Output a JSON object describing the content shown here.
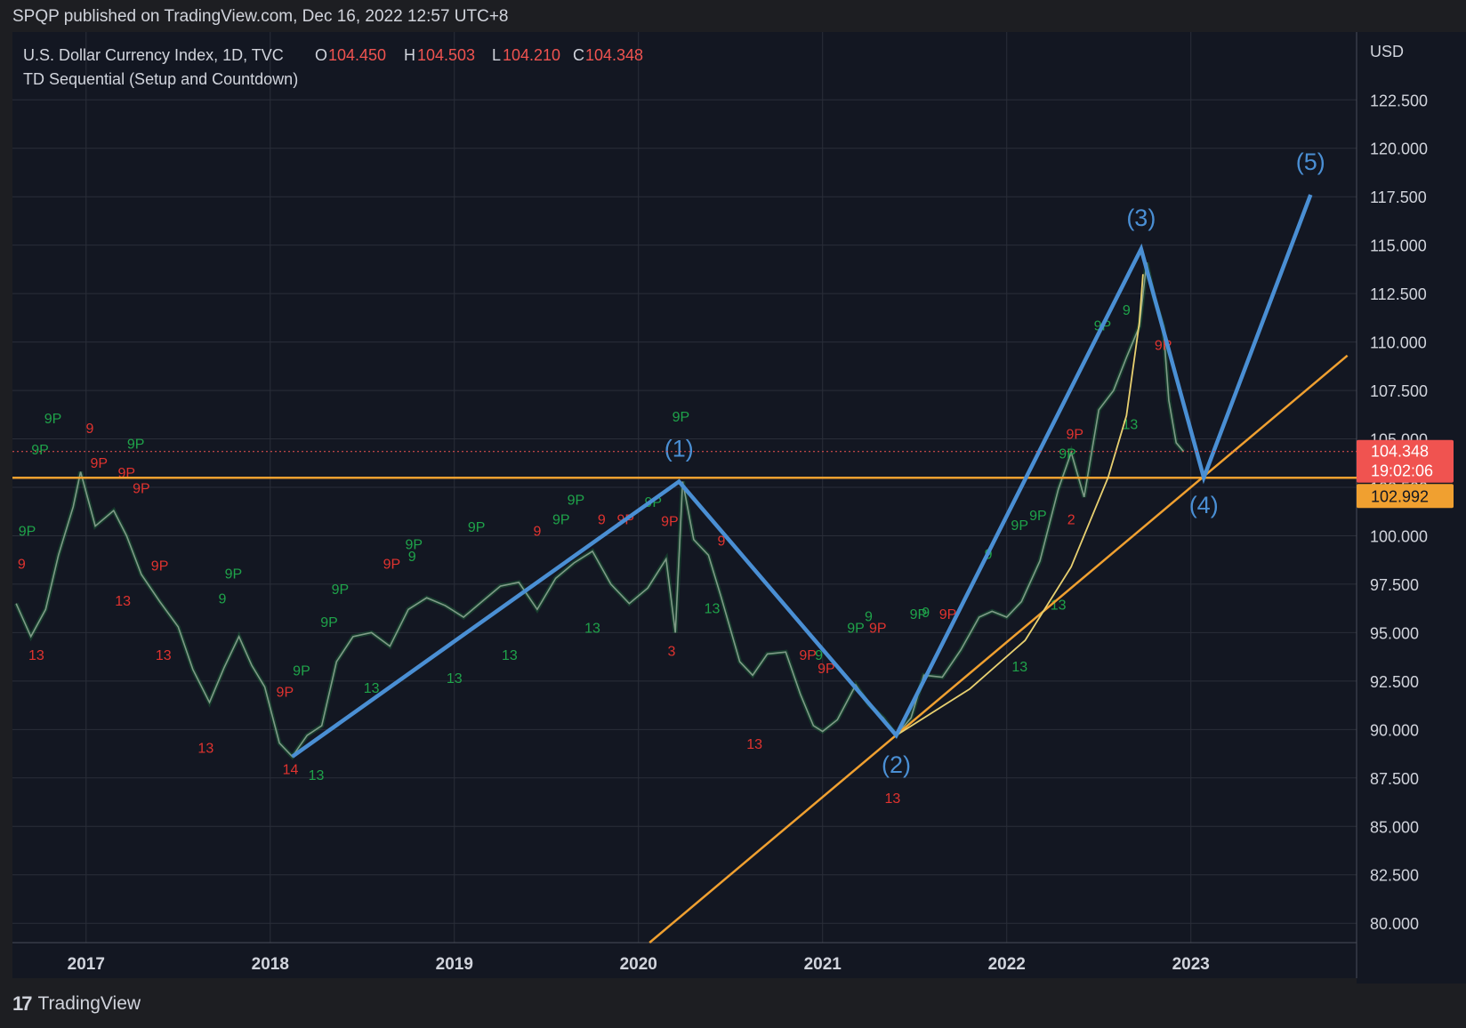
{
  "header": {
    "published": "SPQP published on TradingView.com, Dec 16, 2022 12:57 UTC+8"
  },
  "legend": {
    "symbol": "U.S. Dollar Currency Index, 1D, TVC",
    "o_label": "O",
    "o_value": "104.450",
    "h_label": "H",
    "h_value": "104.503",
    "l_label": "L",
    "l_value": "104.210",
    "c_label": "C",
    "c_value": "104.348",
    "indicator": "TD Sequential (Setup and Countdown)"
  },
  "footer": {
    "logo_mark": "17",
    "logo_text": "TradingView"
  },
  "colors": {
    "background": "#131722",
    "grid": "#2a2e39",
    "wave": "#4a8fd4",
    "trend": "#f0a030",
    "bull": "#1fa34a",
    "bear": "#e0332f",
    "price_tag": "#f05350"
  },
  "chart_data": {
    "type": "line",
    "currency": "USD",
    "y_ticks": [
      80,
      82.5,
      85,
      87.5,
      90,
      92.5,
      95,
      97.5,
      100,
      102.5,
      105,
      107.5,
      110,
      112.5,
      115,
      117.5,
      120,
      122.5
    ],
    "y_tick_labels": [
      "80.000",
      "82.500",
      "85.000",
      "87.500",
      "90.000",
      "92.500",
      "95.000",
      "97.500",
      "100.000",
      "102.500",
      "105.000",
      "107.500",
      "110.000",
      "112.500",
      "115.000",
      "117.500",
      "120.000",
      "122.500"
    ],
    "ylim": [
      79.0,
      126.0
    ],
    "xlim": [
      2016.6,
      2023.9
    ],
    "x_ticks": [
      2017,
      2018,
      2019,
      2020,
      2021,
      2022,
      2023
    ],
    "x_tick_labels": [
      "2017",
      "2018",
      "2019",
      "2020",
      "2021",
      "2022",
      "2023"
    ],
    "price_series": [
      [
        2016.62,
        96.5
      ],
      [
        2016.7,
        94.8
      ],
      [
        2016.78,
        96.2
      ],
      [
        2016.85,
        99.0
      ],
      [
        2016.93,
        101.5
      ],
      [
        2016.97,
        103.3
      ],
      [
        2017.05,
        100.5
      ],
      [
        2017.15,
        101.3
      ],
      [
        2017.22,
        100.0
      ],
      [
        2017.3,
        98.0
      ],
      [
        2017.4,
        96.6
      ],
      [
        2017.5,
        95.3
      ],
      [
        2017.58,
        93.1
      ],
      [
        2017.67,
        91.4
      ],
      [
        2017.75,
        93.2
      ],
      [
        2017.83,
        94.8
      ],
      [
        2017.9,
        93.3
      ],
      [
        2017.97,
        92.2
      ],
      [
        2018.05,
        89.3
      ],
      [
        2018.12,
        88.6
      ],
      [
        2018.2,
        89.7
      ],
      [
        2018.28,
        90.2
      ],
      [
        2018.36,
        93.5
      ],
      [
        2018.45,
        94.8
      ],
      [
        2018.55,
        95.0
      ],
      [
        2018.65,
        94.3
      ],
      [
        2018.75,
        96.2
      ],
      [
        2018.85,
        96.8
      ],
      [
        2018.95,
        96.4
      ],
      [
        2019.05,
        95.8
      ],
      [
        2019.15,
        96.6
      ],
      [
        2019.25,
        97.4
      ],
      [
        2019.35,
        97.6
      ],
      [
        2019.45,
        96.2
      ],
      [
        2019.55,
        97.8
      ],
      [
        2019.65,
        98.6
      ],
      [
        2019.75,
        99.2
      ],
      [
        2019.85,
        97.5
      ],
      [
        2019.95,
        96.5
      ],
      [
        2020.05,
        97.3
      ],
      [
        2020.15,
        98.8
      ],
      [
        2020.2,
        95.0
      ],
      [
        2020.24,
        102.8
      ],
      [
        2020.3,
        99.8
      ],
      [
        2020.38,
        99.0
      ],
      [
        2020.45,
        96.8
      ],
      [
        2020.55,
        93.5
      ],
      [
        2020.62,
        92.8
      ],
      [
        2020.7,
        93.9
      ],
      [
        2020.8,
        94.0
      ],
      [
        2020.88,
        91.8
      ],
      [
        2020.95,
        90.2
      ],
      [
        2021.0,
        89.9
      ],
      [
        2021.08,
        90.5
      ],
      [
        2021.18,
        92.3
      ],
      [
        2021.25,
        91.3
      ],
      [
        2021.33,
        90.6
      ],
      [
        2021.4,
        89.7
      ],
      [
        2021.48,
        90.6
      ],
      [
        2021.55,
        92.8
      ],
      [
        2021.65,
        92.7
      ],
      [
        2021.75,
        94.1
      ],
      [
        2021.85,
        95.8
      ],
      [
        2021.92,
        96.1
      ],
      [
        2022.0,
        95.8
      ],
      [
        2022.08,
        96.6
      ],
      [
        2022.18,
        98.7
      ],
      [
        2022.28,
        102.4
      ],
      [
        2022.35,
        104.3
      ],
      [
        2022.42,
        102.0
      ],
      [
        2022.5,
        106.5
      ],
      [
        2022.58,
        107.5
      ],
      [
        2022.65,
        109.2
      ],
      [
        2022.72,
        110.8
      ],
      [
        2022.76,
        114.1
      ],
      [
        2022.8,
        112.3
      ],
      [
        2022.85,
        110.8
      ],
      [
        2022.88,
        107.0
      ],
      [
        2022.92,
        104.8
      ],
      [
        2022.96,
        104.35
      ]
    ],
    "elliott_wave": {
      "points": [
        [
          2018.12,
          88.6
        ],
        [
          2020.22,
          102.8
        ],
        [
          2021.4,
          89.7
        ],
        [
          2022.73,
          114.8
        ],
        [
          2023.07,
          103.0
        ],
        [
          2023.65,
          117.6
        ]
      ],
      "labels": [
        "(1)",
        "(2)",
        "(3)",
        "(4)",
        "(5)"
      ]
    },
    "horizontal_line": {
      "y": 102.992,
      "label": "102.992"
    },
    "trendline": [
      [
        2020.06,
        79.0
      ],
      [
        2023.85,
        109.3
      ]
    ],
    "parabola": [
      [
        2021.4,
        89.7
      ],
      [
        2021.8,
        92.1
      ],
      [
        2022.1,
        94.6
      ],
      [
        2022.35,
        98.4
      ],
      [
        2022.55,
        103.0
      ],
      [
        2022.65,
        106.2
      ],
      [
        2022.72,
        111.0
      ],
      [
        2022.74,
        113.5
      ]
    ],
    "last_price": {
      "value": "104.348",
      "countdown": "19:02:06"
    },
    "td_labels_red": [
      {
        "x": 2016.65,
        "y": 98.3,
        "t": "9"
      },
      {
        "x": 2016.73,
        "y": 93.6,
        "t": "13"
      },
      {
        "x": 2017.02,
        "y": 105.3,
        "t": "9"
      },
      {
        "x": 2017.07,
        "y": 103.5,
        "t": "9P"
      },
      {
        "x": 2017.22,
        "y": 103.0,
        "t": "9P"
      },
      {
        "x": 2017.3,
        "y": 102.2,
        "t": "9P"
      },
      {
        "x": 2017.2,
        "y": 96.4,
        "t": "13"
      },
      {
        "x": 2017.4,
        "y": 98.2,
        "t": "9P"
      },
      {
        "x": 2017.42,
        "y": 93.6,
        "t": "13"
      },
      {
        "x": 2017.65,
        "y": 88.8,
        "t": "13"
      },
      {
        "x": 2018.08,
        "y": 91.7,
        "t": "9P"
      },
      {
        "x": 2018.11,
        "y": 87.7,
        "t": "14"
      },
      {
        "x": 2018.66,
        "y": 98.3,
        "t": "9P"
      },
      {
        "x": 2019.45,
        "y": 100.0,
        "t": "9"
      },
      {
        "x": 2019.8,
        "y": 100.6,
        "t": "9"
      },
      {
        "x": 2019.93,
        "y": 100.6,
        "t": "9P"
      },
      {
        "x": 2020.17,
        "y": 100.5,
        "t": "9P"
      },
      {
        "x": 2020.18,
        "y": 93.8,
        "t": "3"
      },
      {
        "x": 2020.45,
        "y": 99.5,
        "t": "9"
      },
      {
        "x": 2020.63,
        "y": 89.0,
        "t": "13"
      },
      {
        "x": 2020.92,
        "y": 93.6,
        "t": "9P"
      },
      {
        "x": 2021.02,
        "y": 92.9,
        "t": "9P"
      },
      {
        "x": 2021.3,
        "y": 95.0,
        "t": "9P"
      },
      {
        "x": 2021.38,
        "y": 86.2,
        "t": "13"
      },
      {
        "x": 2021.68,
        "y": 95.7,
        "t": "9P"
      },
      {
        "x": 2022.35,
        "y": 100.6,
        "t": "2"
      },
      {
        "x": 2022.37,
        "y": 105.0,
        "t": "9P"
      },
      {
        "x": 2022.85,
        "y": 109.6,
        "t": "9P"
      }
    ],
    "td_labels_green": [
      {
        "x": 2016.82,
        "y": 105.8,
        "t": "9P"
      },
      {
        "x": 2016.75,
        "y": 104.2,
        "t": "9P"
      },
      {
        "x": 2016.68,
        "y": 100.0,
        "t": "9P"
      },
      {
        "x": 2017.27,
        "y": 104.5,
        "t": "9P"
      },
      {
        "x": 2017.8,
        "y": 97.8,
        "t": "9P"
      },
      {
        "x": 2017.74,
        "y": 96.5,
        "t": "9"
      },
      {
        "x": 2018.17,
        "y": 92.8,
        "t": "9P"
      },
      {
        "x": 2018.38,
        "y": 97.0,
        "t": "9P"
      },
      {
        "x": 2018.32,
        "y": 95.3,
        "t": "9P"
      },
      {
        "x": 2018.55,
        "y": 91.9,
        "t": "13"
      },
      {
        "x": 2018.25,
        "y": 87.4,
        "t": "13"
      },
      {
        "x": 2018.78,
        "y": 99.3,
        "t": "9P"
      },
      {
        "x": 2018.77,
        "y": 98.7,
        "t": "9"
      },
      {
        "x": 2019.0,
        "y": 92.4,
        "t": "13"
      },
      {
        "x": 2019.12,
        "y": 100.2,
        "t": "9P"
      },
      {
        "x": 2019.3,
        "y": 93.6,
        "t": "13"
      },
      {
        "x": 2019.58,
        "y": 100.6,
        "t": "9P"
      },
      {
        "x": 2019.66,
        "y": 101.6,
        "t": "9P"
      },
      {
        "x": 2019.75,
        "y": 95.0,
        "t": "13"
      },
      {
        "x": 2020.08,
        "y": 101.5,
        "t": "9P"
      },
      {
        "x": 2020.23,
        "y": 105.9,
        "t": "9P"
      },
      {
        "x": 2020.4,
        "y": 96.0,
        "t": "13"
      },
      {
        "x": 2020.98,
        "y": 93.6,
        "t": "9"
      },
      {
        "x": 2021.18,
        "y": 95.0,
        "t": "9P"
      },
      {
        "x": 2021.25,
        "y": 95.6,
        "t": "9"
      },
      {
        "x": 2021.52,
        "y": 95.7,
        "t": "9P"
      },
      {
        "x": 2021.56,
        "y": 95.8,
        "t": "9"
      },
      {
        "x": 2021.9,
        "y": 98.8,
        "t": "9"
      },
      {
        "x": 2022.07,
        "y": 100.3,
        "t": "9P"
      },
      {
        "x": 2022.17,
        "y": 100.8,
        "t": "9P"
      },
      {
        "x": 2022.07,
        "y": 93.0,
        "t": "13"
      },
      {
        "x": 2022.28,
        "y": 96.2,
        "t": "13"
      },
      {
        "x": 2022.33,
        "y": 104.0,
        "t": "9P"
      },
      {
        "x": 2022.52,
        "y": 110.6,
        "t": "9P"
      },
      {
        "x": 2022.65,
        "y": 111.4,
        "t": "9"
      },
      {
        "x": 2022.67,
        "y": 105.5,
        "t": "13"
      }
    ]
  }
}
